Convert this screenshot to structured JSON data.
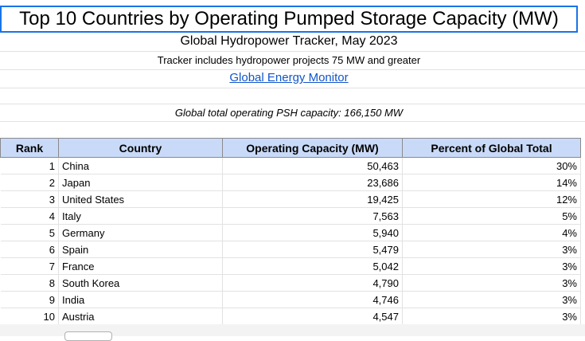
{
  "header": {
    "title": "Top 10 Countries by Operating Pumped Storage Capacity (MW)",
    "subtitle": "Global Hydropower Tracker, May 2023",
    "note": "Tracker includes hydropower projects 75 MW and greater",
    "link_text": "Global Energy Monitor",
    "total_text": "Global total operating PSH capacity: 166,150 MW"
  },
  "table": {
    "columns": [
      "Rank",
      "Country",
      "Operating Capacity (MW)",
      "Percent of Global Total"
    ],
    "rows": [
      {
        "rank": "1",
        "country": "China",
        "capacity": "50,463",
        "percent": "30%"
      },
      {
        "rank": "2",
        "country": "Japan",
        "capacity": "23,686",
        "percent": "14%"
      },
      {
        "rank": "3",
        "country": "United States",
        "capacity": "19,425",
        "percent": "12%"
      },
      {
        "rank": "4",
        "country": "Italy",
        "capacity": "7,563",
        "percent": "5%"
      },
      {
        "rank": "5",
        "country": "Germany",
        "capacity": "5,940",
        "percent": "4%"
      },
      {
        "rank": "6",
        "country": "Spain",
        "capacity": "5,479",
        "percent": "3%"
      },
      {
        "rank": "7",
        "country": "France",
        "capacity": "5,042",
        "percent": "3%"
      },
      {
        "rank": "8",
        "country": "South Korea",
        "capacity": "4,790",
        "percent": "3%"
      },
      {
        "rank": "9",
        "country": "India",
        "capacity": "4,746",
        "percent": "3%"
      },
      {
        "rank": "10",
        "country": "Austria",
        "capacity": "4,547",
        "percent": "3%"
      }
    ]
  },
  "colors": {
    "header_fill": "#c9daf8",
    "link": "#1155cc",
    "selection_border": "#1a73e8"
  }
}
